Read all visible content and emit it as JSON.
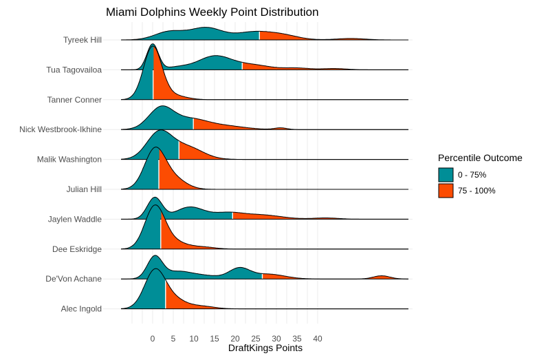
{
  "chart_data": {
    "type": "ridgeline-density",
    "title": "Miami Dolphins Weekly Point Distribution",
    "xlabel": "DraftKings Points",
    "ylabel": "",
    "xlim": [
      -7.5,
      62
    ],
    "x_ticks": [
      0,
      5,
      10,
      15,
      20,
      25,
      30,
      35,
      40
    ],
    "x_tick_labels": [
      "0",
      "5",
      "10",
      "15",
      "20",
      "25",
      "30",
      "35",
      "40"
    ],
    "grid": true,
    "legend": {
      "title": "Percentile Outcome",
      "position": "right",
      "entries": [
        {
          "label": "0 - 75%",
          "color": "#008E97"
        },
        {
          "label": "75 - 100%",
          "color": "#FC4C02"
        }
      ]
    },
    "series": [
      {
        "name": "Tyreek Hill",
        "p75_split": 26,
        "components": [
          [
            4,
            3.5,
            0.22
          ],
          [
            13,
            4,
            0.38
          ],
          [
            24,
            4,
            0.22
          ],
          [
            31,
            4,
            0.16
          ],
          [
            48,
            3.5,
            0.04
          ]
        ]
      },
      {
        "name": "Tua Tagovailoa",
        "p75_split": 21.8,
        "components": [
          [
            0,
            1.4,
            0.28
          ],
          [
            6,
            3,
            0.06
          ],
          [
            15,
            4,
            0.42
          ],
          [
            24,
            4.5,
            0.17
          ],
          [
            35,
            3,
            0.04
          ],
          [
            44,
            3,
            0.03
          ]
        ]
      },
      {
        "name": "Tanner Conner",
        "p75_split": 0,
        "components": [
          [
            0,
            2.2,
            0.9
          ],
          [
            5,
            3,
            0.1
          ]
        ]
      },
      {
        "name": "Nick Westbrook-Ikhine",
        "p75_split": 9.8,
        "components": [
          [
            2,
            3,
            0.5
          ],
          [
            9,
            4,
            0.3
          ],
          [
            17,
            5,
            0.15
          ],
          [
            31,
            1.5,
            0.02
          ]
        ]
      },
      {
        "name": "Malik Washington",
        "p75_split": 6.3,
        "components": [
          [
            1.5,
            3,
            0.6
          ],
          [
            8,
            4,
            0.4
          ]
        ]
      },
      {
        "name": "Julian Hill",
        "p75_split": 1.5,
        "components": [
          [
            0.5,
            2.5,
            0.75
          ],
          [
            5,
            3,
            0.25
          ]
        ]
      },
      {
        "name": "Jaylen Waddle",
        "p75_split": 19.5,
        "components": [
          [
            0.5,
            1.8,
            0.3
          ],
          [
            9,
            3.5,
            0.33
          ],
          [
            18,
            3.5,
            0.15
          ],
          [
            26,
            5,
            0.17
          ],
          [
            42,
            3,
            0.03
          ]
        ]
      },
      {
        "name": "Dee Eskridge",
        "p75_split": 2,
        "components": [
          [
            0.5,
            2.4,
            0.78
          ],
          [
            5,
            3,
            0.17
          ],
          [
            12,
            3,
            0.05
          ]
        ]
      },
      {
        "name": "De'Von Achane",
        "p75_split": 26.7,
        "components": [
          [
            0.5,
            1.8,
            0.3
          ],
          [
            6,
            3.5,
            0.2
          ],
          [
            13,
            3.5,
            0.08
          ],
          [
            21,
            2.5,
            0.2
          ],
          [
            28,
            4,
            0.15
          ],
          [
            55.5,
            2,
            0.05
          ]
        ]
      },
      {
        "name": "Alec Ingold",
        "p75_split": 3.2,
        "components": [
          [
            0.5,
            2.5,
            0.72
          ],
          [
            5,
            3,
            0.22
          ],
          [
            12,
            3,
            0.06
          ]
        ]
      }
    ]
  }
}
